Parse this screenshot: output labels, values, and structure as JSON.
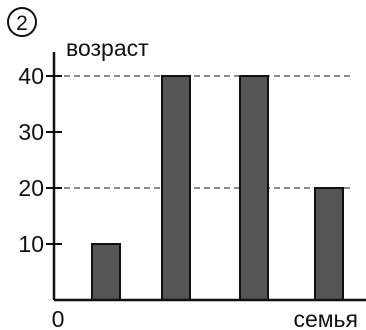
{
  "figure_number": "2",
  "chart_data": {
    "type": "bar",
    "ylabel": "возраст",
    "xlabel": "семья",
    "origin_label": "0",
    "categories": [
      "",
      "",
      "",
      ""
    ],
    "values": [
      10,
      40,
      40,
      20
    ],
    "yticks": [
      10,
      20,
      30,
      40
    ],
    "ylim": [
      0,
      45
    ],
    "dashed_reference_lines": [
      20,
      40
    ],
    "bar_color": "#555555",
    "bar_stroke": "#111111",
    "axis_color": "#111111",
    "dash_color": "#444444"
  }
}
